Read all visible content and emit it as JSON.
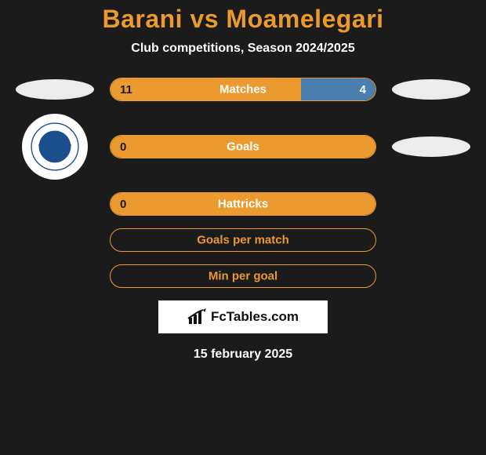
{
  "header": {
    "title": "Barani vs Moamelegari",
    "subtitle": "Club competitions, Season 2024/2025"
  },
  "stats": [
    {
      "label": "Matches",
      "left_value": "11",
      "right_value": "4",
      "left_pct": 72,
      "right_pct": 28,
      "show_right": true,
      "left_icon": "ellipse",
      "right_icon": "ellipse"
    },
    {
      "label": "Goals",
      "left_value": "0",
      "right_value": "",
      "left_pct": 100,
      "right_pct": 0,
      "show_right": false,
      "left_icon": "club",
      "right_icon": "ellipse"
    },
    {
      "label": "Hattricks",
      "left_value": "0",
      "right_value": "",
      "left_pct": 100,
      "right_pct": 0,
      "show_right": false,
      "left_icon": "none",
      "right_icon": "none"
    },
    {
      "label": "Goals per match",
      "left_value": "",
      "right_value": "",
      "left_pct": 0,
      "right_pct": 0,
      "show_right": false,
      "left_icon": "none",
      "right_icon": "none",
      "empty": true
    },
    {
      "label": "Min per goal",
      "left_value": "",
      "right_value": "",
      "left_pct": 0,
      "right_pct": 0,
      "show_right": false,
      "left_icon": "none",
      "right_icon": "none",
      "empty": true
    }
  ],
  "brand": {
    "text": "FcTables.com"
  },
  "date": "15 february 2025",
  "colors": {
    "accent": "#ea9a2e",
    "secondary": "#4a7fb0",
    "bg": "#1b1b1b",
    "ellipse": "#ececec",
    "white": "#ffffff"
  }
}
